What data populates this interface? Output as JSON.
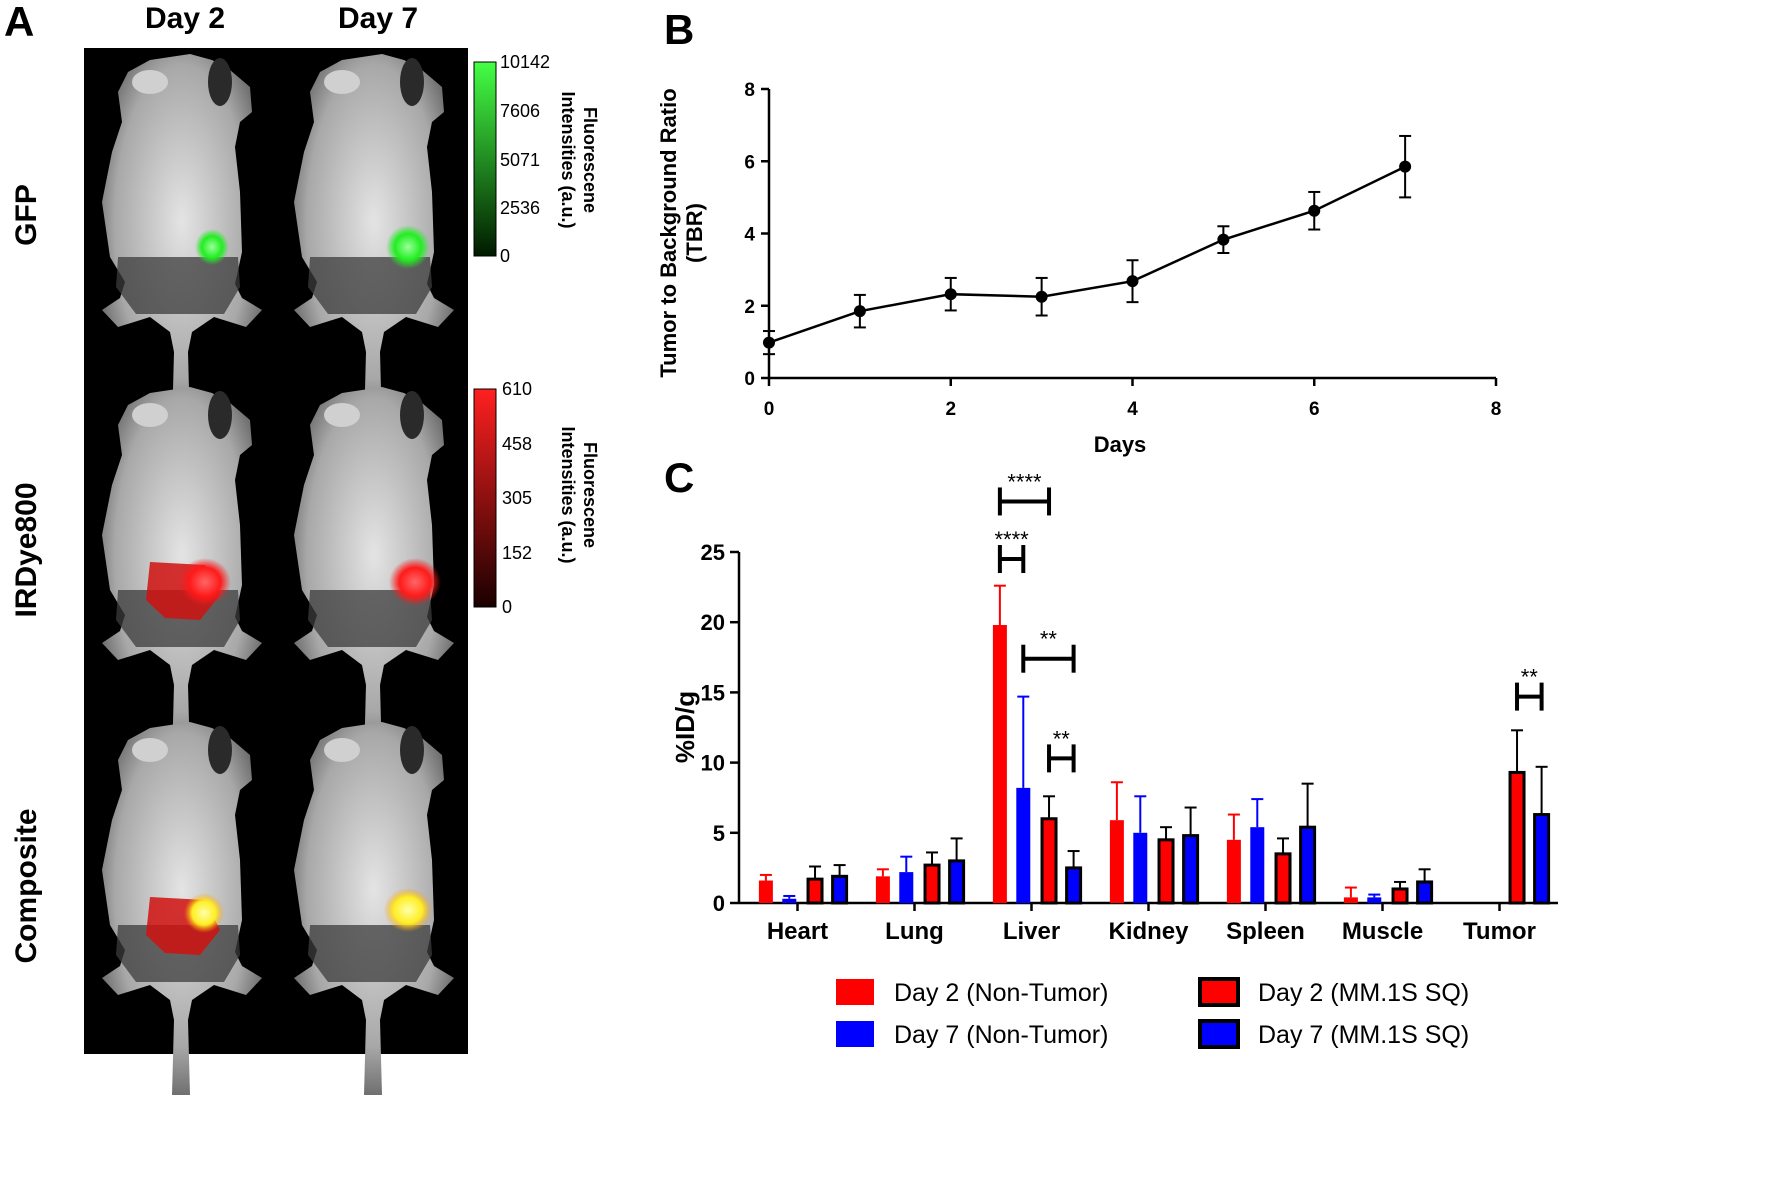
{
  "panel_a": {
    "letter": "A",
    "col_headers": [
      "Day 2",
      "Day 7"
    ],
    "row_labels": [
      "GFP",
      "IRDye800",
      "Composite"
    ],
    "gfp_scale": {
      "ticks": [
        "10142",
        "7606",
        "5071",
        "2536",
        "0"
      ],
      "label_line1": "Fluorescene",
      "label_line2": "Intensities (a.u.)"
    },
    "ir_scale": {
      "ticks": [
        "610",
        "458",
        "305",
        "152",
        "0"
      ],
      "label_line1": "Fluorescene",
      "label_line2": "Intensities (a.u.)"
    },
    "colors": {
      "gfp": "#33ff33",
      "ir": "#ff2020",
      "composite": "#ffff33",
      "background": "#000000"
    }
  },
  "chart_data": [
    {
      "panel": "B",
      "type": "line",
      "xlabel": "Days",
      "ylabel_line1": "Tumor to Background Ratio",
      "ylabel_line2": "(TBR)",
      "xlim": [
        0,
        8
      ],
      "ylim": [
        0,
        8
      ],
      "xticks": [
        0,
        2,
        4,
        6,
        8
      ],
      "yticks": [
        0,
        2,
        4,
        6,
        8
      ],
      "x": [
        0,
        1,
        2,
        3,
        4,
        5,
        6,
        7
      ],
      "y": [
        0.98,
        1.85,
        2.32,
        2.25,
        2.68,
        3.83,
        4.63,
        5.85
      ],
      "err": [
        0.32,
        0.45,
        0.45,
        0.52,
        0.58,
        0.37,
        0.52,
        0.85
      ],
      "color": "#000000"
    },
    {
      "panel": "C",
      "type": "bar",
      "ylabel": "%ID/g",
      "ylim": [
        0,
        25
      ],
      "yticks": [
        0,
        5,
        10,
        15,
        20,
        25
      ],
      "categories": [
        "Heart",
        "Lung",
        "Liver",
        "Kidney",
        "Spleen",
        "Muscle",
        "Tumor"
      ],
      "series": [
        {
          "name": "Day 2 (Non-Tumor)",
          "fill": "#ff0000",
          "edge": "#ff0000",
          "values": [
            1.6,
            1.9,
            19.8,
            5.9,
            4.5,
            0.4,
            null
          ],
          "err": [
            0.4,
            0.5,
            2.8,
            2.7,
            1.8,
            0.7,
            null
          ]
        },
        {
          "name": "Day 7 (Non-Tumor)",
          "fill": "#0000ff",
          "edge": "#0000ff",
          "values": [
            0.3,
            2.2,
            8.2,
            5.0,
            5.4,
            0.4,
            null
          ],
          "err": [
            0.2,
            1.1,
            6.5,
            2.6,
            2.0,
            0.2,
            null
          ]
        },
        {
          "name": "Day 2 (MM.1S SQ)",
          "fill": "#ff0000",
          "edge": "#000000",
          "values": [
            1.7,
            2.7,
            6.0,
            4.5,
            3.5,
            1.0,
            9.3
          ],
          "err": [
            0.9,
            0.9,
            1.6,
            0.9,
            1.1,
            0.5,
            3.0
          ]
        },
        {
          "name": "Day 7 (MM.1S SQ)",
          "fill": "#0000ff",
          "edge": "#000000",
          "values": [
            1.9,
            3.0,
            2.5,
            4.8,
            5.4,
            1.5,
            6.3
          ],
          "err": [
            0.8,
            1.6,
            1.2,
            2.0,
            3.1,
            0.9,
            3.4
          ]
        }
      ],
      "significance": [
        "****",
        "****",
        "**",
        "**",
        "**"
      ]
    }
  ]
}
